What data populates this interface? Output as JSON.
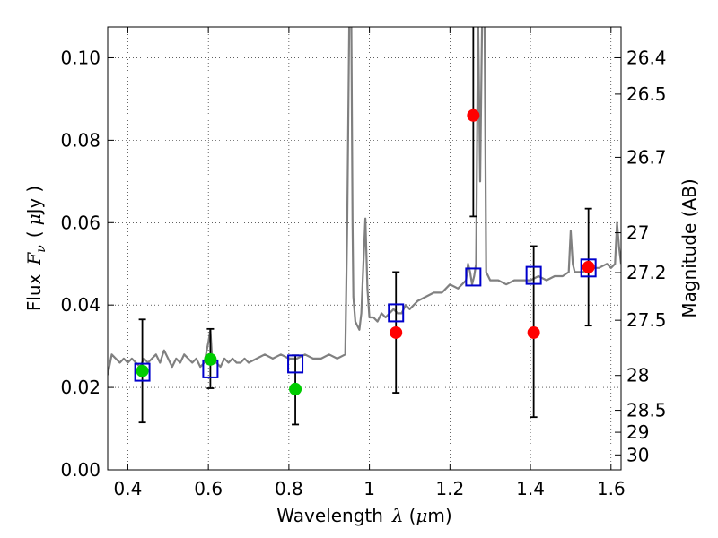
{
  "chart_data": {
    "type": "scatter",
    "xlabel": {
      "prefix": "Wavelength",
      "symbol": "λ",
      "open": "(",
      "unit_prefix": "μ",
      "unit": "m",
      "close": ")"
    },
    "ylabel": {
      "prefix": "Flux",
      "symbol": "F",
      "subscript": "ν",
      "open": "(",
      "unit_prefix": "μ",
      "unit": "Jy",
      "close": ")"
    },
    "ylabel_right": "Magnitude (AB)",
    "xlim": [
      0.35,
      1.625
    ],
    "ylim": [
      0.0,
      0.1075
    ],
    "grid": true,
    "x_ticks": [
      {
        "value": 0.4,
        "label": "0.4"
      },
      {
        "value": 0.6,
        "label": "0.6"
      },
      {
        "value": 0.8,
        "label": "0.8"
      },
      {
        "value": 1.0,
        "label": "1"
      },
      {
        "value": 1.2,
        "label": "1.2"
      },
      {
        "value": 1.4,
        "label": "1.4"
      },
      {
        "value": 1.6,
        "label": "1.6"
      }
    ],
    "y_ticks": [
      {
        "value": 0.0,
        "label": "0.00"
      },
      {
        "value": 0.02,
        "label": "0.02"
      },
      {
        "value": 0.04,
        "label": "0.04"
      },
      {
        "value": 0.06,
        "label": "0.06"
      },
      {
        "value": 0.08,
        "label": "0.08"
      },
      {
        "value": 0.1,
        "label": "0.10"
      }
    ],
    "y2_ticks": [
      {
        "value": 26.4,
        "label": "26.4"
      },
      {
        "value": 26.5,
        "label": "26.5"
      },
      {
        "value": 26.7,
        "label": "26.7"
      },
      {
        "value": 27.0,
        "label": "27"
      },
      {
        "value": 27.2,
        "label": "27.2"
      },
      {
        "value": 27.5,
        "label": "27.5"
      },
      {
        "value": 28.0,
        "label": "28"
      },
      {
        "value": 28.5,
        "label": "28.5"
      },
      {
        "value": 29.0,
        "label": "29"
      },
      {
        "value": 30.0,
        "label": "30"
      }
    ],
    "series": [
      {
        "name": "model-spectrum",
        "kind": "line",
        "color": "#808080",
        "x": [
          0.35,
          0.36,
          0.37,
          0.38,
          0.39,
          0.4,
          0.41,
          0.42,
          0.43,
          0.44,
          0.45,
          0.46,
          0.47,
          0.48,
          0.49,
          0.5,
          0.51,
          0.52,
          0.53,
          0.54,
          0.55,
          0.56,
          0.57,
          0.58,
          0.59,
          0.6,
          0.605,
          0.61,
          0.62,
          0.63,
          0.64,
          0.65,
          0.66,
          0.67,
          0.68,
          0.69,
          0.7,
          0.72,
          0.74,
          0.76,
          0.78,
          0.8,
          0.82,
          0.84,
          0.86,
          0.88,
          0.9,
          0.92,
          0.94,
          0.945,
          0.95,
          0.952,
          0.955,
          0.958,
          0.96,
          0.965,
          0.97,
          0.975,
          0.98,
          0.985,
          0.99,
          0.995,
          1.0,
          1.01,
          1.02,
          1.03,
          1.04,
          1.05,
          1.06,
          1.07,
          1.08,
          1.09,
          1.1,
          1.12,
          1.14,
          1.16,
          1.18,
          1.2,
          1.22,
          1.24,
          1.245,
          1.25,
          1.255,
          1.26,
          1.265,
          1.27,
          1.275,
          1.28,
          1.283,
          1.286,
          1.29,
          1.3,
          1.32,
          1.34,
          1.36,
          1.38,
          1.4,
          1.42,
          1.44,
          1.46,
          1.48,
          1.495,
          1.5,
          1.505,
          1.51,
          1.53,
          1.55,
          1.57,
          1.59,
          1.6,
          1.61,
          1.615,
          1.62,
          1.625
        ],
        "y": [
          0.023,
          0.028,
          0.027,
          0.026,
          0.027,
          0.026,
          0.027,
          0.026,
          0.025,
          0.027,
          0.026,
          0.027,
          0.028,
          0.026,
          0.029,
          0.027,
          0.025,
          0.027,
          0.026,
          0.028,
          0.027,
          0.026,
          0.027,
          0.025,
          0.026,
          0.031,
          0.034,
          0.026,
          0.026,
          0.025,
          0.027,
          0.026,
          0.027,
          0.026,
          0.026,
          0.027,
          0.026,
          0.027,
          0.028,
          0.027,
          0.028,
          0.027,
          0.027,
          0.028,
          0.027,
          0.027,
          0.028,
          0.027,
          0.028,
          0.06,
          0.11,
          0.11,
          0.11,
          0.06,
          0.042,
          0.036,
          0.035,
          0.034,
          0.038,
          0.05,
          0.061,
          0.044,
          0.037,
          0.037,
          0.036,
          0.038,
          0.037,
          0.038,
          0.039,
          0.038,
          0.038,
          0.04,
          0.039,
          0.041,
          0.042,
          0.043,
          0.043,
          0.045,
          0.044,
          0.046,
          0.05,
          0.048,
          0.045,
          0.047,
          0.05,
          0.11,
          0.07,
          0.11,
          0.11,
          0.11,
          0.048,
          0.046,
          0.046,
          0.045,
          0.046,
          0.046,
          0.046,
          0.047,
          0.046,
          0.047,
          0.047,
          0.048,
          0.058,
          0.05,
          0.048,
          0.048,
          0.049,
          0.049,
          0.05,
          0.049,
          0.05,
          0.06,
          0.054,
          0.05
        ]
      },
      {
        "name": "model-photometry",
        "kind": "open-square",
        "color": "#0000cc",
        "x": [
          0.436,
          0.605,
          0.816,
          1.066,
          1.258,
          1.408,
          1.544
        ],
        "y": [
          0.0237,
          0.0245,
          0.0257,
          0.0381,
          0.0468,
          0.0472,
          0.049
        ]
      },
      {
        "name": "observed-green",
        "kind": "filled-circle",
        "color": "#00cc00",
        "x": [
          0.436,
          0.605,
          0.816
        ],
        "y": [
          0.024,
          0.0268,
          0.0196
        ],
        "yerr_low": [
          0.0125,
          0.007,
          0.0086
        ],
        "yerr_high": [
          0.0125,
          0.0074,
          0.0082
        ]
      },
      {
        "name": "observed-red",
        "kind": "filled-circle",
        "color": "#ff0000",
        "x": [
          1.066,
          1.258,
          1.408,
          1.544
        ],
        "y": [
          0.0333,
          0.086,
          0.0333,
          0.0492
        ],
        "yerr_low": [
          0.0146,
          0.0245,
          0.0205,
          0.0142
        ],
        "yerr_high": [
          0.0147,
          0.024,
          0.021,
          0.0142
        ]
      }
    ]
  }
}
